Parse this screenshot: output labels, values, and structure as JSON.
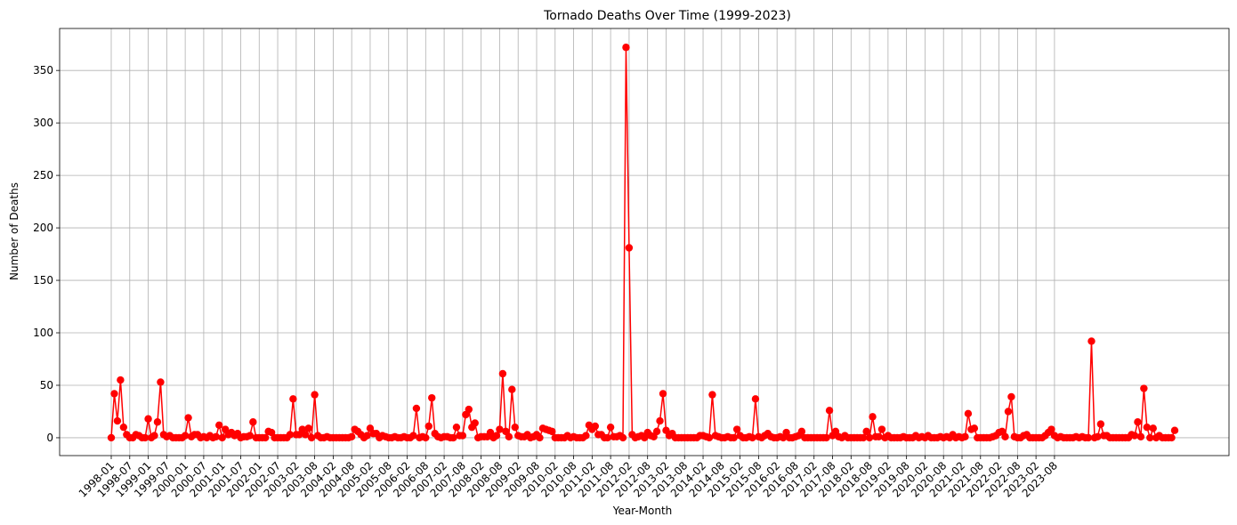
{
  "chart_data": {
    "type": "line",
    "title": "Tornado Deaths Over Time (1999-2023)",
    "xlabel": "Year-Month",
    "ylabel": "Number of Deaths",
    "ylim": [
      -17,
      390
    ],
    "yticks": [
      0,
      50,
      100,
      150,
      200,
      250,
      300,
      350
    ],
    "grid": true,
    "color": "#ff0000",
    "xtick_labels": [
      "1998-01",
      "1998-07",
      "1999-01",
      "1999-07",
      "2000-01",
      "2000-07",
      "2001-01",
      "2001-07",
      "2002-01",
      "2002-07",
      "2003-02",
      "2003-08",
      "2004-02",
      "2004-08",
      "2005-02",
      "2005-08",
      "2006-02",
      "2006-08",
      "2007-02",
      "2007-08",
      "2008-02",
      "2008-08",
      "2009-02",
      "2009-08",
      "2010-02",
      "2010-08",
      "2011-02",
      "2011-08",
      "2012-02",
      "2012-08",
      "2013-02",
      "2013-08",
      "2014-02",
      "2014-08",
      "2015-02",
      "2015-08",
      "2016-02",
      "2016-08",
      "2017-02",
      "2017-08",
      "2018-02",
      "2018-08",
      "2019-02",
      "2019-08",
      "2020-02",
      "2020-08",
      "2021-02",
      "2021-08",
      "2022-02",
      "2022-08",
      "2023-02",
      "2023-08"
    ],
    "series": [
      {
        "values": [
          0,
          42,
          16,
          55,
          10,
          3,
          0,
          0,
          3,
          2,
          0,
          0,
          18,
          0,
          2,
          15,
          53,
          3,
          1,
          2,
          0,
          0,
          0,
          0,
          2,
          19,
          1,
          3,
          3,
          0,
          1,
          0,
          2,
          0,
          1,
          12,
          0,
          8,
          3,
          5,
          2,
          4,
          0,
          1,
          1,
          2,
          15,
          0,
          0,
          0,
          0,
          6,
          5,
          0,
          0,
          0,
          0,
          0,
          3,
          37,
          3,
          3,
          8,
          3,
          9,
          0,
          41,
          2,
          0,
          0,
          1,
          0,
          0,
          0,
          0,
          0,
          0,
          0,
          1,
          8,
          6,
          3,
          0,
          2,
          9,
          4,
          4,
          0,
          2,
          1,
          0,
          0,
          1,
          0,
          0,
          1,
          0,
          0,
          2,
          28,
          0,
          1,
          0,
          11,
          38,
          4,
          1,
          0,
          1,
          1,
          0,
          0,
          10,
          2,
          2,
          22,
          27,
          10,
          14,
          0,
          1,
          1,
          1,
          5,
          0,
          2,
          8,
          61,
          6,
          1,
          46,
          10,
          2,
          1,
          1,
          3,
          0,
          1,
          3,
          0,
          9,
          8,
          7,
          6,
          0,
          0,
          0,
          0,
          2,
          0,
          1,
          0,
          0,
          0,
          2,
          12,
          8,
          11,
          3,
          3,
          0,
          0,
          10,
          1,
          1,
          2,
          0,
          372,
          181,
          3,
          0,
          1,
          2,
          0,
          5,
          2,
          1,
          6,
          16,
          42,
          7,
          2,
          4,
          0,
          0,
          0,
          0,
          0,
          0,
          0,
          0,
          2,
          2,
          1,
          0,
          41,
          2,
          1,
          0,
          0,
          1,
          0,
          0,
          8,
          2,
          0,
          0,
          1,
          0,
          37,
          1,
          0,
          2,
          4,
          1,
          0,
          0,
          1,
          0,
          5,
          0,
          0,
          1,
          2,
          6,
          0,
          0,
          0,
          0,
          0,
          0,
          0,
          0,
          26,
          2,
          6,
          1,
          0,
          2,
          0,
          0,
          0,
          0,
          0,
          0,
          6,
          0,
          20,
          1,
          1,
          8,
          0,
          2,
          0,
          0,
          0,
          0,
          1,
          0,
          0,
          0,
          2,
          0,
          1,
          0,
          2,
          0,
          0,
          0,
          1,
          0,
          1,
          0,
          3,
          0,
          1,
          0,
          1,
          23,
          8,
          9,
          0,
          0,
          0,
          0,
          0,
          1,
          2,
          5,
          6,
          1,
          25,
          39,
          1,
          0,
          0,
          2,
          3,
          0,
          0,
          0,
          0,
          0,
          2,
          5,
          8,
          2,
          0,
          1,
          0,
          0,
          0,
          0,
          1,
          0,
          1,
          0,
          0,
          92,
          0,
          1,
          13,
          2,
          2,
          0,
          0,
          0,
          0,
          0,
          0,
          0,
          3,
          2,
          15,
          1,
          47,
          10,
          0,
          9,
          0,
          2,
          0,
          0,
          0,
          0,
          7
        ]
      }
    ]
  }
}
